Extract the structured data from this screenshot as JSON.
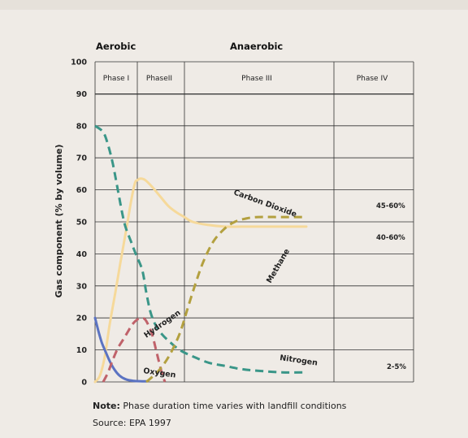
{
  "chart_data": {
    "type": "line",
    "xlabel": "",
    "ylabel": "Gas component (% by volume)",
    "ylim": [
      0,
      100
    ],
    "yticks": [
      0,
      10,
      20,
      30,
      40,
      50,
      60,
      70,
      80,
      90,
      100
    ],
    "header_labels": [
      "Aerobic",
      "Anaerobic"
    ],
    "phases": [
      "Phase I",
      "PhaseII",
      "Phase III",
      "Phase IV"
    ],
    "series": [
      {
        "name": "Carbon Dioxide",
        "style": "solid",
        "color": "#f6d99a",
        "points": [
          [
            0,
            0
          ],
          [
            0.06,
            2
          ],
          [
            0.12,
            8
          ],
          [
            0.18,
            18
          ],
          [
            0.25,
            28
          ],
          [
            0.31,
            37
          ],
          [
            0.38,
            47
          ],
          [
            0.44,
            56
          ],
          [
            0.49,
            62
          ],
          [
            0.52,
            63
          ],
          [
            0.56,
            63.5
          ],
          [
            0.62,
            63
          ],
          [
            0.7,
            61
          ],
          [
            0.8,
            58
          ],
          [
            0.9,
            55
          ],
          [
            1.0,
            53
          ],
          [
            1.1,
            51.5
          ],
          [
            1.2,
            50
          ],
          [
            1.4,
            49
          ],
          [
            1.6,
            48.5
          ],
          [
            1.8,
            48.5
          ],
          [
            2.0,
            48.5
          ],
          [
            2.3,
            48.5
          ],
          [
            2.6,
            48.5
          ]
        ]
      },
      {
        "name": "Nitrogen",
        "style": "dashed",
        "color": "#3a9688",
        "points": [
          [
            0,
            80
          ],
          [
            0.1,
            78
          ],
          [
            0.16,
            74
          ],
          [
            0.22,
            68
          ],
          [
            0.28,
            60
          ],
          [
            0.34,
            52
          ],
          [
            0.38,
            48
          ],
          [
            0.44,
            44
          ],
          [
            0.5,
            40
          ],
          [
            0.58,
            35
          ],
          [
            0.63,
            28
          ],
          [
            0.68,
            22
          ],
          [
            0.74,
            18
          ],
          [
            0.82,
            15
          ],
          [
            0.92,
            12.5
          ],
          [
            1.04,
            10
          ],
          [
            1.2,
            8
          ],
          [
            1.4,
            6
          ],
          [
            1.6,
            5
          ],
          [
            1.8,
            4
          ],
          [
            2.0,
            3.5
          ],
          [
            2.3,
            3
          ],
          [
            2.6,
            3
          ]
        ]
      },
      {
        "name": "Oxygen",
        "style": "solid",
        "color": "#5b73c2",
        "points": [
          [
            0,
            20
          ],
          [
            0.04,
            16
          ],
          [
            0.08,
            12.5
          ],
          [
            0.12,
            10
          ],
          [
            0.18,
            6.5
          ],
          [
            0.24,
            3.8
          ],
          [
            0.3,
            2
          ],
          [
            0.38,
            0.8
          ],
          [
            0.48,
            0.3
          ],
          [
            0.58,
            0.2
          ],
          [
            0.63,
            0.2
          ]
        ]
      },
      {
        "name": "Hydrogen",
        "style": "dashed",
        "color": "#c0626a",
        "points": [
          [
            0.1,
            0
          ],
          [
            0.16,
            3
          ],
          [
            0.22,
            7
          ],
          [
            0.28,
            10.5
          ],
          [
            0.34,
            13
          ],
          [
            0.4,
            15.5
          ],
          [
            0.46,
            18
          ],
          [
            0.52,
            19.5
          ],
          [
            0.58,
            20
          ],
          [
            0.63,
            19
          ],
          [
            0.7,
            15
          ],
          [
            0.76,
            9
          ],
          [
            0.82,
            3
          ],
          [
            0.86,
            0
          ]
        ]
      },
      {
        "name": "Methane",
        "style": "dashed",
        "color": "#b3a03f",
        "points": [
          [
            0.63,
            0
          ],
          [
            0.7,
            1.5
          ],
          [
            0.8,
            4
          ],
          [
            0.92,
            8.5
          ],
          [
            1.04,
            15
          ],
          [
            1.14,
            23
          ],
          [
            1.24,
            31
          ],
          [
            1.34,
            38
          ],
          [
            1.46,
            44
          ],
          [
            1.6,
            48
          ],
          [
            1.72,
            50
          ],
          [
            1.85,
            51
          ],
          [
            2.0,
            51.5
          ],
          [
            2.3,
            51.5
          ],
          [
            2.6,
            51.5
          ]
        ]
      }
    ],
    "annotations": [
      "45-60%",
      "40-60%",
      "2-5%"
    ]
  },
  "note": {
    "label": "Note:",
    "text": " Phase duration time varies with landfill conditions"
  },
  "source": "Source: EPA 1997"
}
